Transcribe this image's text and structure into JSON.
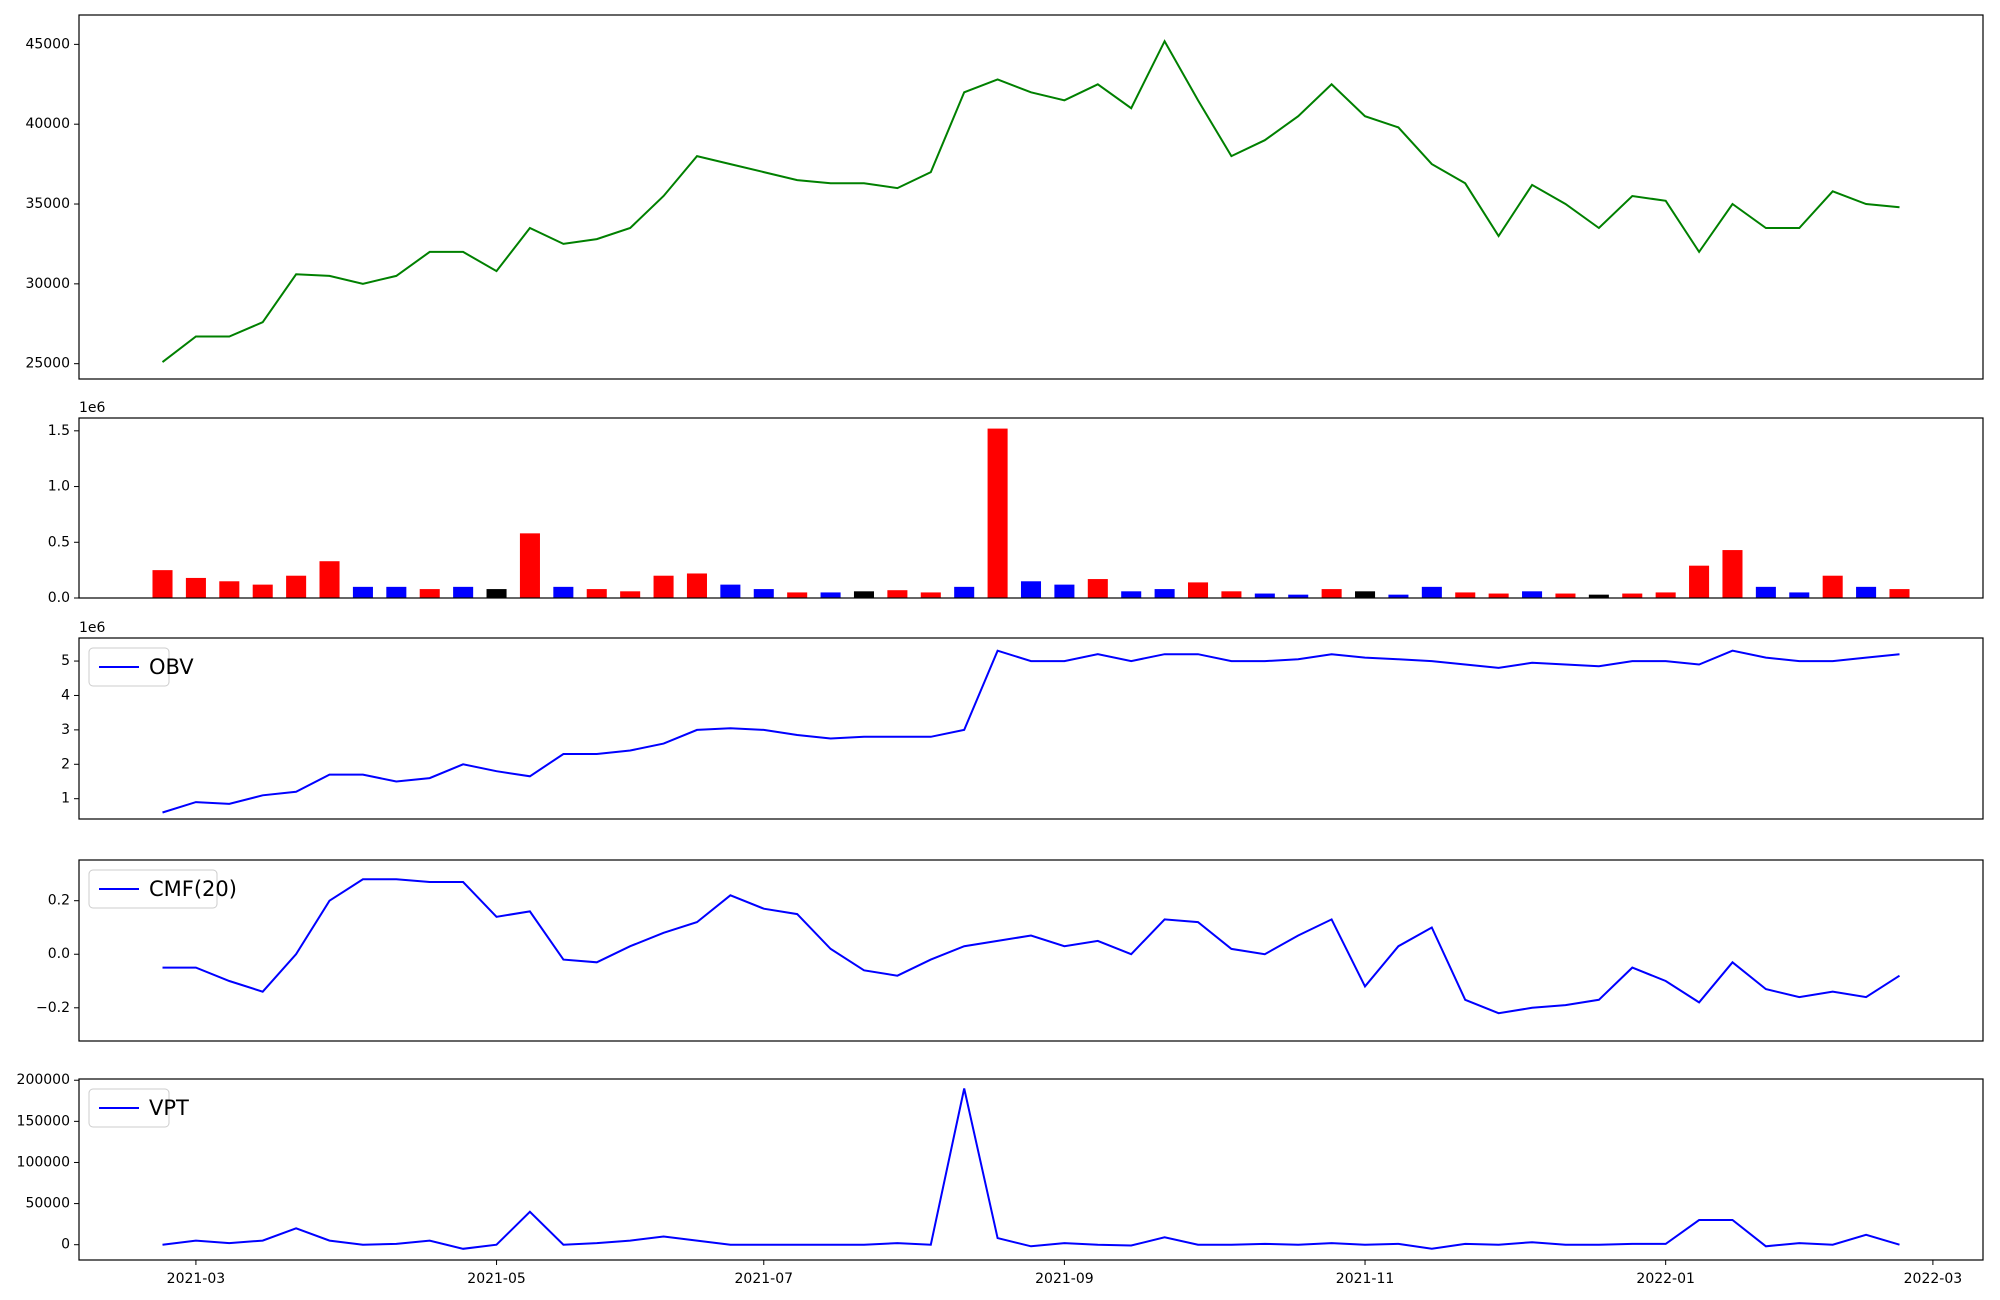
{
  "chart_data": [
    {
      "type": "line",
      "ylim": [
        24040,
        46840
      ],
      "yticks": [
        25000,
        30000,
        35000,
        40000,
        45000
      ],
      "series": [
        {
          "color": "green",
          "values": [
            null,
            null,
            25100,
            26700,
            26700,
            27600,
            30600,
            30500,
            30000,
            30500,
            32000,
            32000,
            30800,
            33500,
            32500,
            32800,
            33500,
            35500,
            38000,
            37500,
            37000,
            36500,
            36300,
            36300,
            36000,
            37000,
            42000,
            42800,
            42000,
            41500,
            42500,
            41000,
            45200,
            41500,
            38000,
            39000,
            40500,
            42500,
            40500,
            39800,
            37500,
            36300,
            33000,
            36200,
            35000,
            33500,
            35500,
            35200,
            32000,
            35000,
            33500,
            33500,
            35800,
            35000,
            34800,
            null,
            null
          ]
        }
      ]
    },
    {
      "type": "bar",
      "ylim": [
        0,
        1.615
      ],
      "offset_label": "1e6",
      "yticks": [
        {
          "value": 0,
          "label": "0.0"
        },
        {
          "value": 0.5,
          "label": "0.5"
        },
        {
          "value": 1,
          "label": "1.0"
        },
        {
          "value": 1.5,
          "label": "1.5"
        }
      ],
      "values": [
        null,
        null,
        0.25,
        0.18,
        0.15,
        0.12,
        0.2,
        0.33,
        0.1,
        0.1,
        0.08,
        0.1,
        0.08,
        0.58,
        0.1,
        0.08,
        0.06,
        0.2,
        0.22,
        0.12,
        0.08,
        0.05,
        0.05,
        0.06,
        0.07,
        0.05,
        0.1,
        1.52,
        0.15,
        0.12,
        0.17,
        0.06,
        0.08,
        0.14,
        0.06,
        0.04,
        0.03,
        0.08,
        0.06,
        0.03,
        0.1,
        0.05,
        0.04,
        0.06,
        0.04,
        0.03,
        0.04,
        0.05,
        0.29,
        0.43,
        0.1,
        0.05,
        0.2,
        0.1,
        0.08,
        null,
        null
      ],
      "colors": [
        null,
        null,
        "red",
        "red",
        "red",
        "red",
        "red",
        "red",
        "blue",
        "blue",
        "red",
        "blue",
        "black",
        "red",
        "blue",
        "red",
        "red",
        "red",
        "red",
        "blue",
        "blue",
        "red",
        "blue",
        "black",
        "red",
        "red",
        "blue",
        "red",
        "blue",
        "blue",
        "red",
        "blue",
        "blue",
        "red",
        "red",
        "blue",
        "blue",
        "red",
        "black",
        "blue",
        "blue",
        "red",
        "red",
        "blue",
        "red",
        "black",
        "red",
        "red",
        "red",
        "red",
        "blue",
        "blue",
        "red",
        "blue",
        "red",
        null,
        null
      ]
    },
    {
      "type": "line",
      "ylim": [
        0.41,
        5.67
      ],
      "offset_label": "1e6",
      "yticks": [
        1,
        2,
        3,
        4,
        5
      ],
      "series": [
        {
          "name": "OBV",
          "color": "blue",
          "values": [
            null,
            null,
            0.6,
            0.9,
            0.85,
            1.1,
            1.2,
            1.7,
            1.7,
            1.5,
            1.6,
            2.0,
            1.8,
            1.65,
            2.3,
            2.3,
            2.4,
            2.6,
            3.0,
            3.05,
            3.0,
            2.85,
            2.75,
            2.8,
            2.8,
            2.8,
            3.0,
            5.3,
            5.0,
            5.0,
            5.2,
            5.0,
            5.2,
            5.2,
            5.0,
            5.0,
            5.05,
            5.2,
            5.1,
            5.05,
            5.0,
            4.9,
            4.8,
            4.95,
            4.9,
            4.85,
            5.0,
            5.0,
            4.9,
            5.3,
            5.1,
            5.0,
            5.0,
            5.1,
            5.2,
            null,
            null
          ]
        }
      ]
    },
    {
      "type": "line",
      "ylim": [
        -0.324,
        0.352
      ],
      "yticks": [
        {
          "value": -0.2,
          "label": "−0.2"
        },
        {
          "value": 0,
          "label": "0.0"
        },
        {
          "value": 0.2,
          "label": "0.2"
        }
      ],
      "series": [
        {
          "name": "CMF(20)",
          "color": "blue",
          "values": [
            null,
            null,
            -0.05,
            -0.05,
            -0.1,
            -0.14,
            0.0,
            0.2,
            0.28,
            0.28,
            0.27,
            0.27,
            0.14,
            0.16,
            -0.02,
            -0.03,
            0.03,
            0.08,
            0.12,
            0.22,
            0.17,
            0.15,
            0.02,
            -0.06,
            -0.08,
            -0.02,
            0.03,
            0.05,
            0.07,
            0.03,
            0.05,
            0.0,
            0.13,
            0.12,
            0.02,
            0.0,
            0.07,
            0.13,
            -0.12,
            0.03,
            0.1,
            -0.17,
            -0.22,
            -0.2,
            -0.19,
            -0.17,
            -0.05,
            -0.1,
            -0.18,
            -0.03,
            -0.13,
            -0.16,
            -0.14,
            -0.16,
            -0.08,
            null,
            null
          ]
        }
      ]
    },
    {
      "type": "line",
      "ylim": [
        -18600,
        201500
      ],
      "yticks": [
        0,
        50000,
        100000,
        150000,
        200000
      ],
      "categories": [
        null,
        null,
        null,
        "2021-03",
        null,
        null,
        null,
        null,
        null,
        null,
        null,
        null,
        "2021-05",
        null,
        null,
        null,
        null,
        null,
        null,
        null,
        "2021-07",
        null,
        null,
        null,
        null,
        null,
        null,
        null,
        null,
        "2021-09",
        null,
        null,
        null,
        null,
        null,
        null,
        null,
        null,
        "2021-11",
        null,
        null,
        null,
        null,
        null,
        null,
        null,
        null,
        "2022-01",
        null,
        null,
        null,
        null,
        null,
        null,
        null,
        "2022-03",
        null
      ],
      "series": [
        {
          "name": "VPT",
          "color": "blue",
          "values": [
            null,
            null,
            0,
            5000,
            2000,
            5000,
            20000,
            5000,
            0,
            1000,
            5000,
            -5000,
            0,
            40000,
            0,
            2000,
            5000,
            10000,
            5000,
            0,
            0,
            0,
            0,
            0,
            2000,
            0,
            190000,
            8000,
            -2000,
            2000,
            0,
            -1000,
            9000,
            0,
            0,
            1000,
            0,
            2000,
            0,
            1000,
            -5000,
            1000,
            0,
            3000,
            0,
            0,
            1000,
            1000,
            30000,
            30000,
            -2000,
            2000,
            0,
            12000,
            0,
            null,
            null
          ]
        }
      ]
    }
  ]
}
